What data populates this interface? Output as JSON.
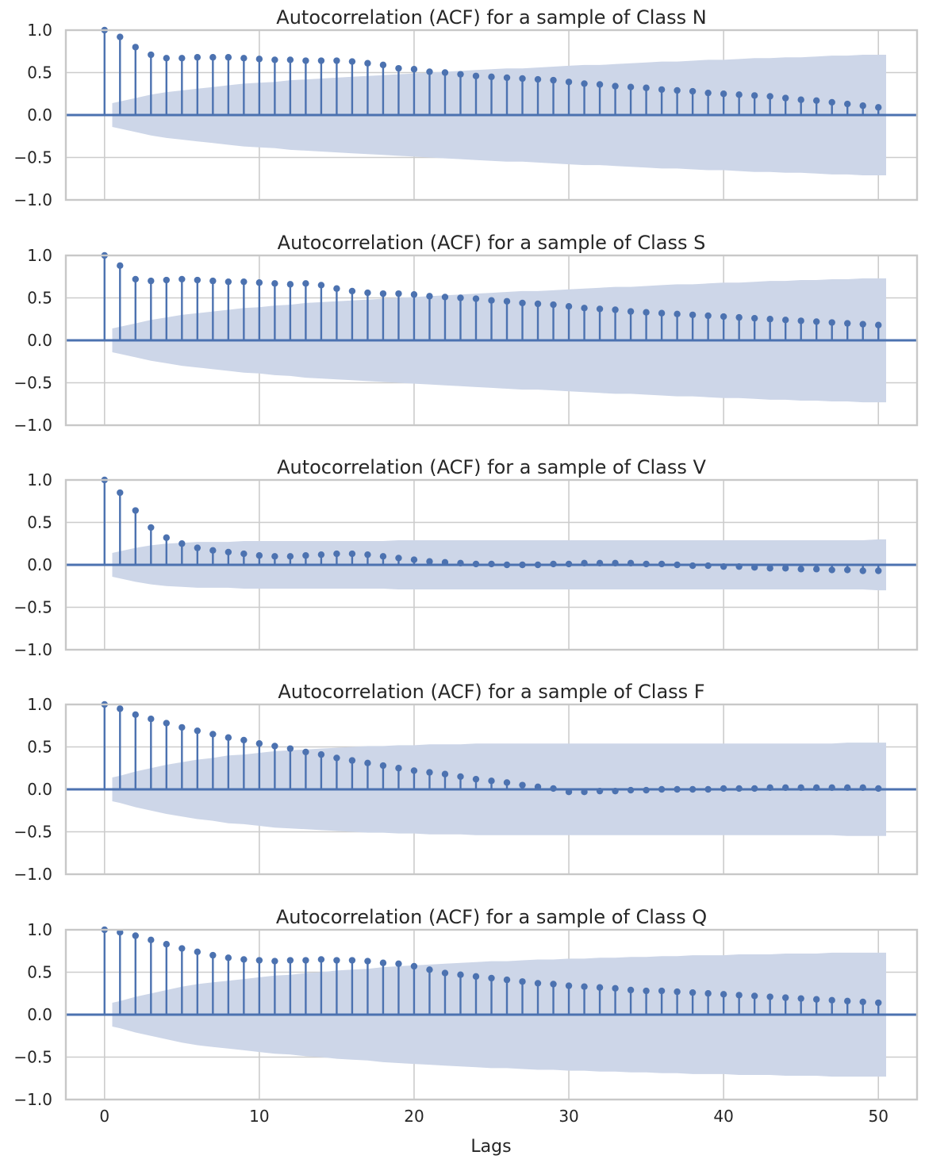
{
  "figure": {
    "xlabel": "Lags"
  },
  "colors": {
    "stem": "#4c72b0",
    "band": "#cdd6e8",
    "zero_line": "#4c72b0"
  },
  "x_ticks": [
    0,
    10,
    20,
    30,
    40,
    50
  ],
  "y_ticks": [
    1.0,
    0.5,
    0.0,
    -0.5,
    -1.0
  ],
  "y_tick_labels": [
    "1.0",
    "0.5",
    "0.0",
    "−0.5",
    "−1.0"
  ],
  "chart_data": [
    {
      "type": "stem",
      "title": "Autocorrelation (ACF) for a sample of Class N",
      "xlim": [
        -2.5,
        52.5
      ],
      "ylim": [
        -1.0,
        1.0
      ],
      "grid": true,
      "lags": [
        0,
        1,
        2,
        3,
        4,
        5,
        6,
        7,
        8,
        9,
        10,
        11,
        12,
        13,
        14,
        15,
        16,
        17,
        18,
        19,
        20,
        21,
        22,
        23,
        24,
        25,
        26,
        27,
        28,
        29,
        30,
        31,
        32,
        33,
        34,
        35,
        36,
        37,
        38,
        39,
        40,
        41,
        42,
        43,
        44,
        45,
        46,
        47,
        48,
        49,
        50
      ],
      "acf": [
        1.0,
        0.92,
        0.8,
        0.71,
        0.67,
        0.67,
        0.68,
        0.68,
        0.68,
        0.67,
        0.66,
        0.65,
        0.65,
        0.64,
        0.64,
        0.64,
        0.63,
        0.61,
        0.59,
        0.55,
        0.54,
        0.51,
        0.5,
        0.48,
        0.46,
        0.45,
        0.44,
        0.43,
        0.42,
        0.41,
        0.39,
        0.37,
        0.36,
        0.34,
        0.33,
        0.32,
        0.3,
        0.29,
        0.28,
        0.26,
        0.25,
        0.24,
        0.23,
        0.22,
        0.2,
        0.18,
        0.17,
        0.15,
        0.13,
        0.11,
        0.09
      ],
      "confint_upper": [
        0.14,
        0.16,
        0.2,
        0.24,
        0.27,
        0.29,
        0.31,
        0.33,
        0.35,
        0.37,
        0.38,
        0.39,
        0.41,
        0.42,
        0.43,
        0.44,
        0.45,
        0.46,
        0.47,
        0.48,
        0.49,
        0.5,
        0.51,
        0.52,
        0.53,
        0.54,
        0.55,
        0.55,
        0.56,
        0.57,
        0.58,
        0.59,
        0.59,
        0.6,
        0.61,
        0.62,
        0.63,
        0.63,
        0.64,
        0.65,
        0.65,
        0.66,
        0.67,
        0.67,
        0.68,
        0.68,
        0.69,
        0.7,
        0.7,
        0.71,
        0.71
      ]
    },
    {
      "type": "stem",
      "title": "Autocorrelation (ACF) for a sample of Class S",
      "xlim": [
        -2.5,
        52.5
      ],
      "ylim": [
        -1.0,
        1.0
      ],
      "grid": true,
      "lags": [
        0,
        1,
        2,
        3,
        4,
        5,
        6,
        7,
        8,
        9,
        10,
        11,
        12,
        13,
        14,
        15,
        16,
        17,
        18,
        19,
        20,
        21,
        22,
        23,
        24,
        25,
        26,
        27,
        28,
        29,
        30,
        31,
        32,
        33,
        34,
        35,
        36,
        37,
        38,
        39,
        40,
        41,
        42,
        43,
        44,
        45,
        46,
        47,
        48,
        49,
        50
      ],
      "acf": [
        1.0,
        0.88,
        0.72,
        0.7,
        0.71,
        0.72,
        0.71,
        0.7,
        0.69,
        0.69,
        0.68,
        0.67,
        0.66,
        0.67,
        0.65,
        0.61,
        0.58,
        0.56,
        0.55,
        0.55,
        0.54,
        0.52,
        0.51,
        0.5,
        0.49,
        0.47,
        0.46,
        0.44,
        0.43,
        0.42,
        0.4,
        0.38,
        0.37,
        0.36,
        0.34,
        0.33,
        0.32,
        0.31,
        0.3,
        0.29,
        0.28,
        0.27,
        0.26,
        0.25,
        0.24,
        0.23,
        0.22,
        0.21,
        0.2,
        0.19,
        0.18
      ],
      "confint_upper": [
        0.14,
        0.16,
        0.2,
        0.24,
        0.27,
        0.3,
        0.32,
        0.34,
        0.36,
        0.38,
        0.39,
        0.41,
        0.42,
        0.44,
        0.45,
        0.46,
        0.47,
        0.48,
        0.49,
        0.5,
        0.51,
        0.52,
        0.53,
        0.54,
        0.55,
        0.56,
        0.57,
        0.58,
        0.58,
        0.59,
        0.6,
        0.61,
        0.62,
        0.63,
        0.63,
        0.64,
        0.65,
        0.66,
        0.66,
        0.67,
        0.68,
        0.68,
        0.69,
        0.7,
        0.7,
        0.71,
        0.71,
        0.72,
        0.72,
        0.73,
        0.73
      ]
    },
    {
      "type": "stem",
      "title": "Autocorrelation (ACF) for a sample of Class V",
      "xlim": [
        -2.5,
        52.5
      ],
      "ylim": [
        -1.0,
        1.0
      ],
      "grid": true,
      "lags": [
        0,
        1,
        2,
        3,
        4,
        5,
        6,
        7,
        8,
        9,
        10,
        11,
        12,
        13,
        14,
        15,
        16,
        17,
        18,
        19,
        20,
        21,
        22,
        23,
        24,
        25,
        26,
        27,
        28,
        29,
        30,
        31,
        32,
        33,
        34,
        35,
        36,
        37,
        38,
        39,
        40,
        41,
        42,
        43,
        44,
        45,
        46,
        47,
        48,
        49,
        50
      ],
      "acf": [
        1.0,
        0.85,
        0.64,
        0.44,
        0.32,
        0.25,
        0.2,
        0.17,
        0.15,
        0.13,
        0.11,
        0.1,
        0.1,
        0.11,
        0.12,
        0.13,
        0.13,
        0.12,
        0.1,
        0.08,
        0.06,
        0.04,
        0.03,
        0.02,
        0.01,
        0.01,
        0.0,
        0.0,
        0.0,
        0.01,
        0.01,
        0.02,
        0.02,
        0.02,
        0.02,
        0.01,
        0.01,
        0.0,
        -0.01,
        -0.01,
        -0.02,
        -0.02,
        -0.03,
        -0.04,
        -0.04,
        -0.05,
        -0.05,
        -0.06,
        -0.06,
        -0.07,
        -0.07
      ],
      "confint_upper": [
        0.14,
        0.16,
        0.2,
        0.23,
        0.25,
        0.26,
        0.27,
        0.27,
        0.27,
        0.28,
        0.28,
        0.28,
        0.28,
        0.28,
        0.28,
        0.28,
        0.28,
        0.28,
        0.28,
        0.29,
        0.29,
        0.29,
        0.29,
        0.29,
        0.29,
        0.29,
        0.29,
        0.29,
        0.29,
        0.29,
        0.29,
        0.29,
        0.29,
        0.29,
        0.29,
        0.29,
        0.29,
        0.29,
        0.29,
        0.29,
        0.29,
        0.29,
        0.29,
        0.29,
        0.29,
        0.29,
        0.29,
        0.29,
        0.29,
        0.29,
        0.3
      ]
    },
    {
      "type": "stem",
      "title": "Autocorrelation (ACF) for a sample of Class F",
      "xlim": [
        -2.5,
        52.5
      ],
      "ylim": [
        -1.0,
        1.0
      ],
      "grid": true,
      "lags": [
        0,
        1,
        2,
        3,
        4,
        5,
        6,
        7,
        8,
        9,
        10,
        11,
        12,
        13,
        14,
        15,
        16,
        17,
        18,
        19,
        20,
        21,
        22,
        23,
        24,
        25,
        26,
        27,
        28,
        29,
        30,
        31,
        32,
        33,
        34,
        35,
        36,
        37,
        38,
        39,
        40,
        41,
        42,
        43,
        44,
        45,
        46,
        47,
        48,
        49,
        50
      ],
      "acf": [
        1.0,
        0.95,
        0.88,
        0.83,
        0.78,
        0.73,
        0.69,
        0.65,
        0.61,
        0.58,
        0.54,
        0.51,
        0.48,
        0.44,
        0.41,
        0.37,
        0.34,
        0.31,
        0.28,
        0.25,
        0.22,
        0.2,
        0.18,
        0.15,
        0.12,
        0.1,
        0.08,
        0.05,
        0.03,
        0.01,
        -0.03,
        -0.03,
        -0.02,
        -0.02,
        -0.01,
        -0.01,
        0.0,
        0.0,
        0.0,
        0.0,
        0.01,
        0.01,
        0.01,
        0.02,
        0.02,
        0.02,
        0.02,
        0.02,
        0.02,
        0.02,
        0.01
      ],
      "confint_upper": [
        0.14,
        0.16,
        0.21,
        0.25,
        0.29,
        0.32,
        0.35,
        0.37,
        0.4,
        0.41,
        0.43,
        0.45,
        0.46,
        0.47,
        0.48,
        0.49,
        0.5,
        0.51,
        0.51,
        0.52,
        0.52,
        0.53,
        0.53,
        0.53,
        0.54,
        0.54,
        0.54,
        0.54,
        0.54,
        0.54,
        0.54,
        0.54,
        0.54,
        0.54,
        0.54,
        0.54,
        0.54,
        0.54,
        0.54,
        0.54,
        0.54,
        0.54,
        0.54,
        0.54,
        0.54,
        0.54,
        0.54,
        0.54,
        0.55,
        0.55,
        0.55
      ]
    },
    {
      "type": "stem",
      "title": "Autocorrelation (ACF) for a sample of Class Q",
      "xlim": [
        -2.5,
        52.5
      ],
      "ylim": [
        -1.0,
        1.0
      ],
      "grid": true,
      "lags": [
        0,
        1,
        2,
        3,
        4,
        5,
        6,
        7,
        8,
        9,
        10,
        11,
        12,
        13,
        14,
        15,
        16,
        17,
        18,
        19,
        20,
        21,
        22,
        23,
        24,
        25,
        26,
        27,
        28,
        29,
        30,
        31,
        32,
        33,
        34,
        35,
        36,
        37,
        38,
        39,
        40,
        41,
        42,
        43,
        44,
        45,
        46,
        47,
        48,
        49,
        50
      ],
      "acf": [
        1.0,
        0.97,
        0.93,
        0.88,
        0.83,
        0.78,
        0.74,
        0.7,
        0.67,
        0.65,
        0.64,
        0.63,
        0.64,
        0.64,
        0.65,
        0.64,
        0.64,
        0.63,
        0.61,
        0.6,
        0.57,
        0.53,
        0.49,
        0.47,
        0.45,
        0.43,
        0.41,
        0.39,
        0.37,
        0.36,
        0.34,
        0.33,
        0.32,
        0.31,
        0.29,
        0.28,
        0.28,
        0.27,
        0.26,
        0.25,
        0.24,
        0.23,
        0.22,
        0.21,
        0.2,
        0.19,
        0.18,
        0.17,
        0.16,
        0.15,
        0.14
      ],
      "confint_upper": [
        0.14,
        0.16,
        0.21,
        0.25,
        0.29,
        0.33,
        0.36,
        0.38,
        0.4,
        0.42,
        0.44,
        0.46,
        0.47,
        0.49,
        0.5,
        0.52,
        0.53,
        0.54,
        0.56,
        0.57,
        0.58,
        0.59,
        0.6,
        0.61,
        0.62,
        0.63,
        0.63,
        0.64,
        0.65,
        0.65,
        0.66,
        0.66,
        0.67,
        0.67,
        0.68,
        0.68,
        0.69,
        0.69,
        0.7,
        0.7,
        0.7,
        0.71,
        0.71,
        0.71,
        0.72,
        0.72,
        0.72,
        0.73,
        0.73,
        0.73,
        0.73
      ]
    }
  ]
}
